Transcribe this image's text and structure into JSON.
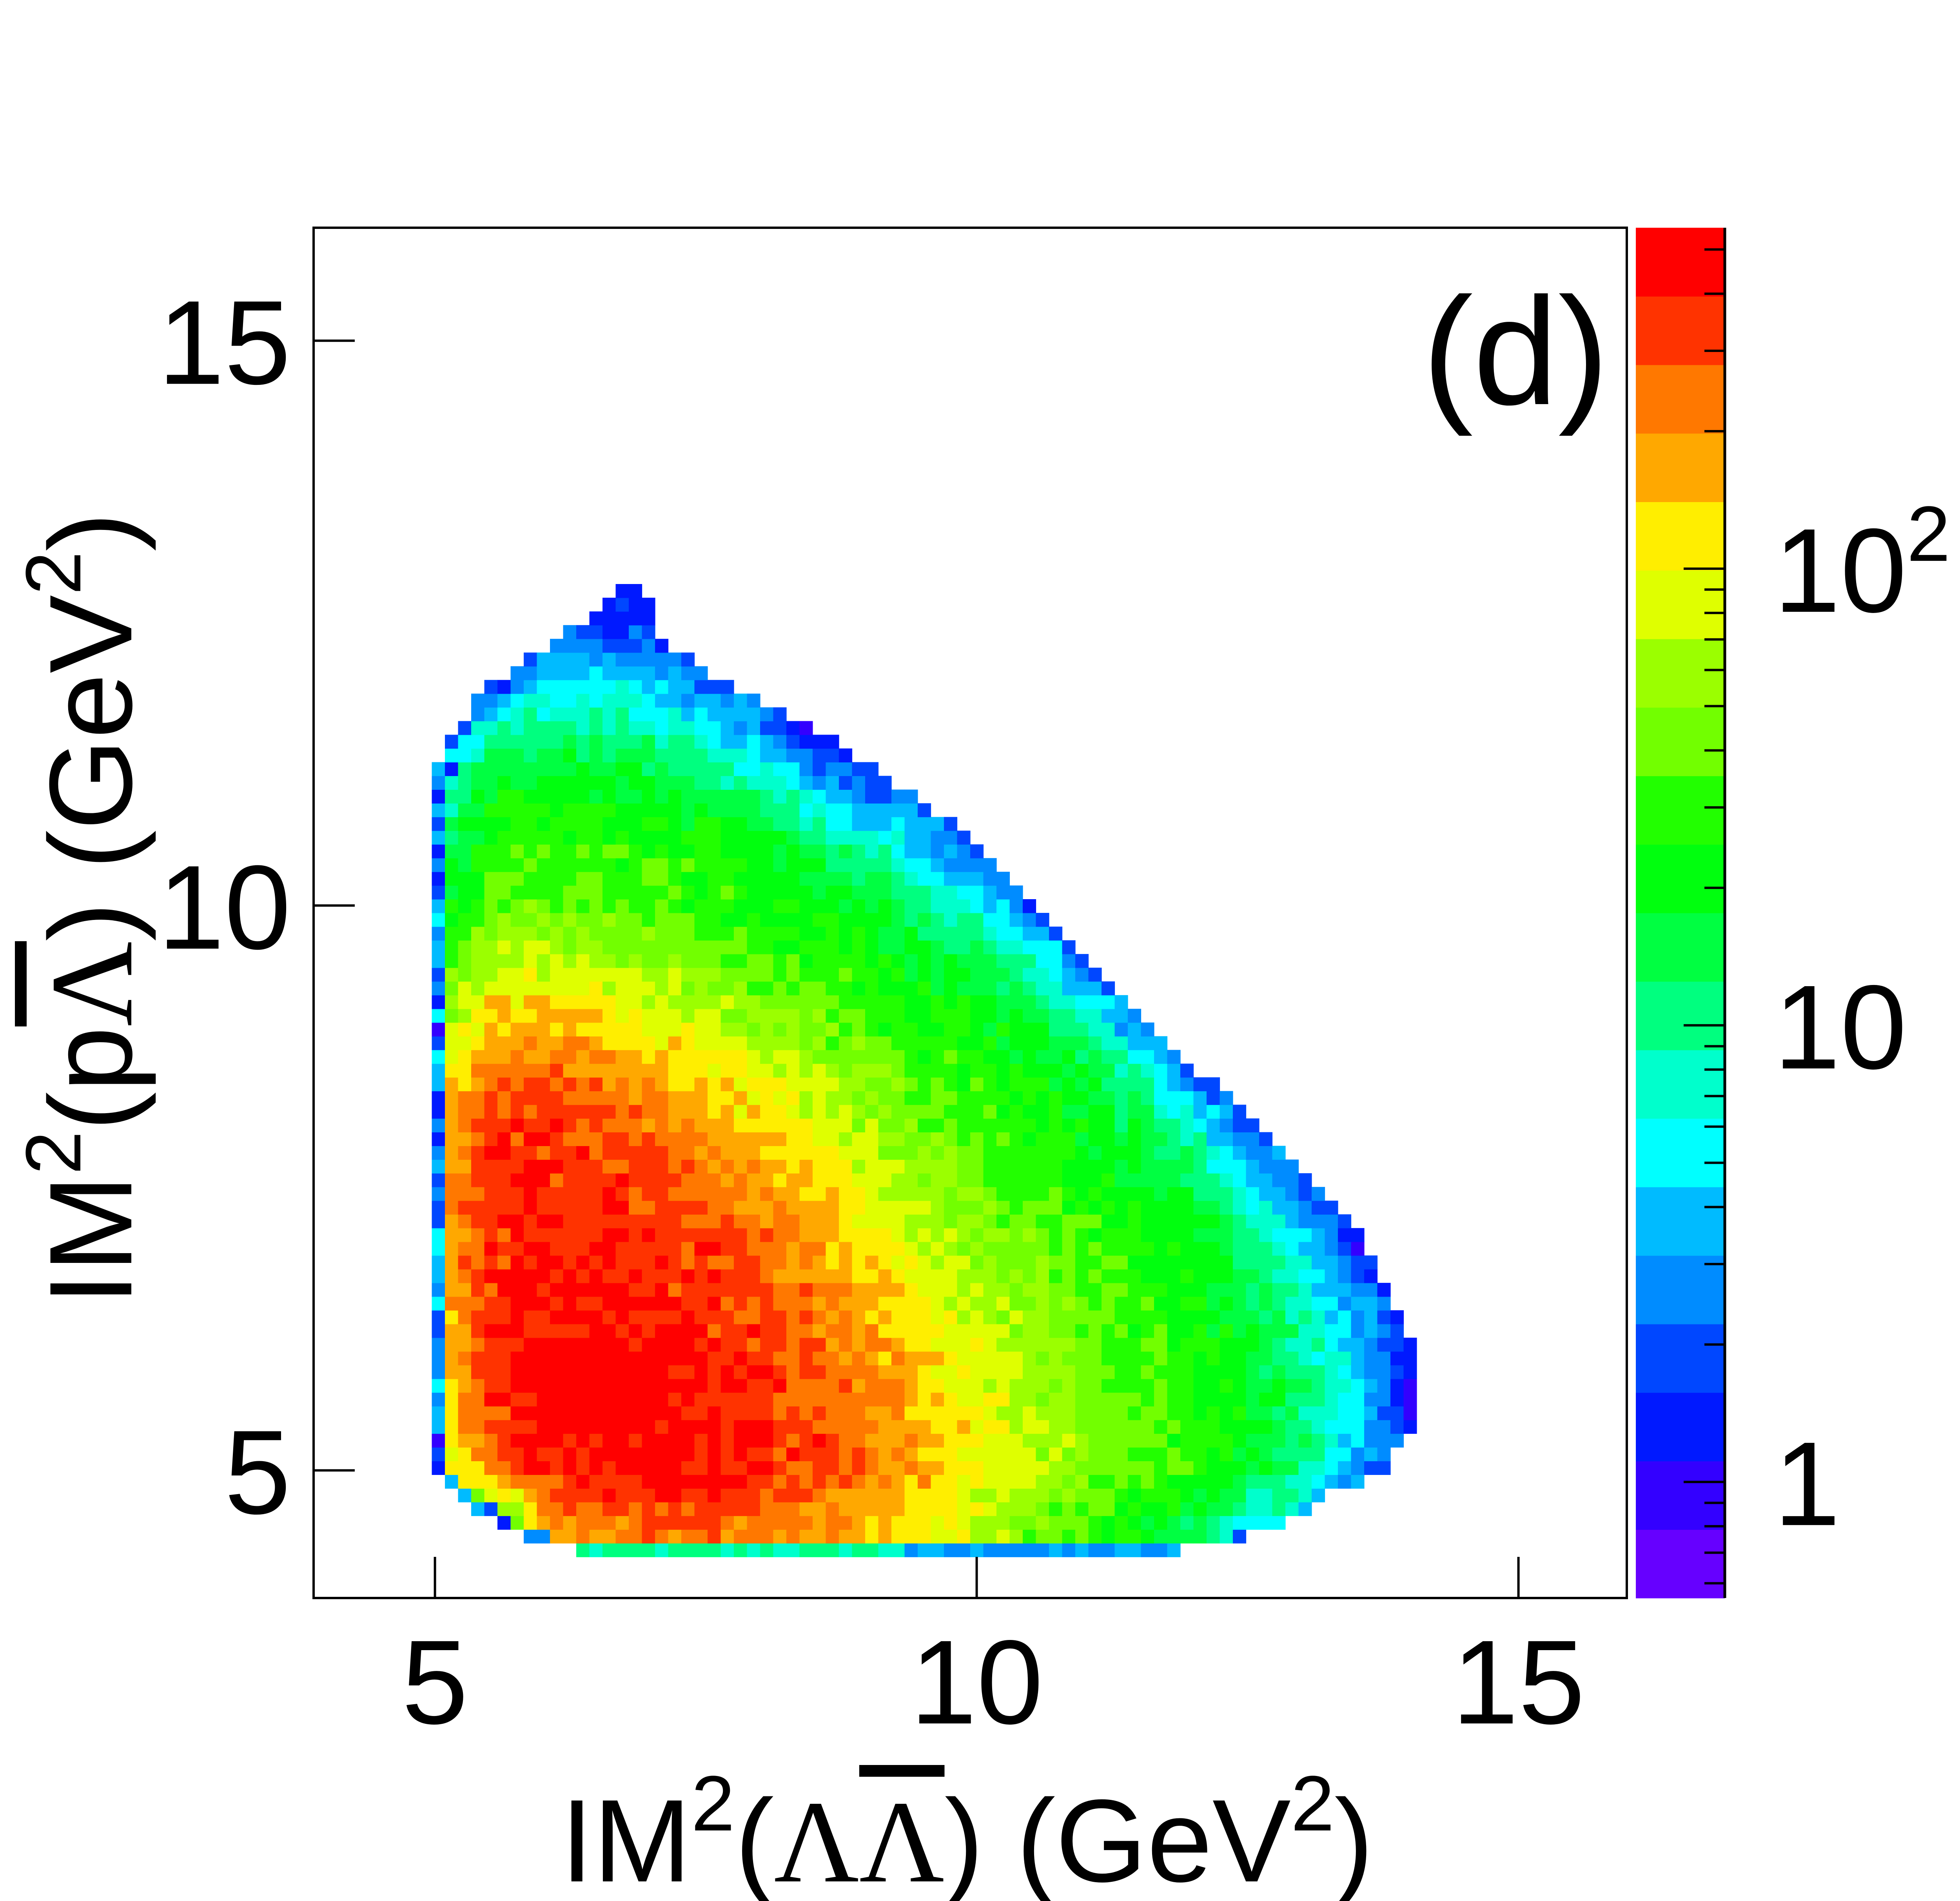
{
  "chart_data": {
    "type": "heatmap",
    "panel_label": "(d)",
    "xlabel": {
      "prefix": "IM",
      "sup": "2",
      "open": "(",
      "particle1": "Λ",
      "particle2": "Λ",
      "close": ")",
      "units_open": " (GeV",
      "units_sup": "2",
      "units_close": ")"
    },
    "ylabel": {
      "prefix": "IM",
      "sup": "2",
      "open": "(",
      "particle1": "p",
      "particle2": "Λ",
      "close": ")",
      "units_open": " (GeV",
      "units_sup": "2",
      "units_close": ")"
    },
    "xlim": [
      3.88,
      16.0
    ],
    "ylim": [
      3.87,
      16.0
    ],
    "nbins_x": 100,
    "nbins_y": 100,
    "x_ticks": [
      {
        "value": 5,
        "label": "5"
      },
      {
        "value": 10,
        "label": "10"
      },
      {
        "value": 15,
        "label": "15"
      }
    ],
    "y_ticks": [
      {
        "value": 5,
        "label": "5"
      },
      {
        "value": 10,
        "label": "10"
      },
      {
        "value": 15,
        "label": "15"
      }
    ],
    "z_scale": "log",
    "zlim": [
      0.557,
      558
    ],
    "z_ticks": [
      {
        "value": 1,
        "label": "1"
      },
      {
        "value": 10,
        "label": "10"
      },
      {
        "value": 100,
        "label": "10",
        "sup": "2"
      }
    ],
    "palette": [
      "#6600ff",
      "#3300ff",
      "#0019ff",
      "#0047ff",
      "#008cff",
      "#00bbff",
      "#00ffff",
      "#00ffcc",
      "#00ff7f",
      "#00ff41",
      "#00ff0e",
      "#22ff00",
      "#72ff00",
      "#9bff00",
      "#dfff00",
      "#ffee00",
      "#ffa800",
      "#ff7800",
      "#ff3300",
      "#ff0000"
    ],
    "grid": false,
    "colorbar": "right",
    "coarse_grid": {
      "x": [
        5.0,
        5.5,
        6.0,
        6.5,
        7.0,
        7.5,
        8.0,
        8.5,
        9.0,
        9.5,
        10.0,
        10.5,
        11.0,
        11.5,
        12.0,
        12.5,
        13.0,
        13.5,
        14.0
      ],
      "y": [
        4.5,
        5.0,
        5.5,
        6.0,
        6.5,
        7.0,
        7.5,
        8.0,
        8.5,
        9.0,
        9.5,
        10.0,
        10.5,
        11.0,
        11.5,
        12.0,
        12.5
      ],
      "counts": [
        [
          0,
          10,
          150,
          200,
          250,
          260,
          230,
          190,
          150,
          110,
          70,
          45,
          30,
          22,
          14,
          5,
          0,
          0,
          0
        ],
        [
          60,
          240,
          380,
          470,
          470,
          420,
          360,
          320,
          250,
          170,
          100,
          70,
          50,
          38,
          28,
          18,
          9,
          3,
          0
        ],
        [
          100,
          320,
          480,
          500,
          480,
          420,
          350,
          300,
          230,
          160,
          100,
          70,
          50,
          36,
          28,
          20,
          12,
          5,
          1.2
        ],
        [
          110,
          350,
          480,
          470,
          440,
          380,
          340,
          270,
          200,
          140,
          85,
          60,
          42,
          32,
          26,
          18,
          10,
          4,
          1.2
        ],
        [
          120,
          360,
          420,
          400,
          370,
          350,
          310,
          230,
          160,
          100,
          70,
          50,
          38,
          30,
          24,
          16,
          8,
          3,
          0
        ],
        [
          140,
          350,
          380,
          370,
          350,
          330,
          250,
          180,
          120,
          80,
          55,
          40,
          32,
          26,
          20,
          12,
          5,
          1.5,
          0
        ],
        [
          150,
          350,
          360,
          350,
          320,
          250,
          180,
          130,
          85,
          58,
          42,
          33,
          27,
          20,
          14,
          7,
          2,
          0,
          0
        ],
        [
          120,
          330,
          340,
          300,
          240,
          180,
          130,
          90,
          60,
          45,
          34,
          28,
          22,
          14,
          8,
          2,
          0,
          0,
          0
        ],
        [
          80,
          230,
          250,
          220,
          170,
          125,
          85,
          62,
          45,
          34,
          28,
          22,
          16,
          9,
          2,
          0,
          0,
          0,
          0
        ],
        [
          40,
          140,
          150,
          120,
          95,
          75,
          55,
          42,
          32,
          26,
          22,
          16,
          8,
          2,
          0,
          0,
          0,
          0,
          0
        ],
        [
          25,
          70,
          75,
          65,
          55,
          45,
          35,
          30,
          24,
          20,
          14,
          8,
          2,
          0,
          0,
          0,
          0,
          0,
          0
        ],
        [
          16,
          40,
          42,
          38,
          35,
          30,
          26,
          22,
          18,
          10,
          6,
          2,
          0,
          0,
          0,
          0,
          0,
          0,
          0
        ],
        [
          12,
          28,
          30,
          30,
          28,
          26,
          22,
          14,
          9,
          4,
          1.5,
          0,
          0,
          0,
          0,
          0,
          0,
          0,
          0
        ],
        [
          6,
          18,
          22,
          22,
          20,
          16,
          10,
          5,
          2,
          0,
          0,
          0,
          0,
          0,
          0,
          0,
          0,
          0,
          0
        ],
        [
          2,
          10,
          12,
          10,
          9,
          6,
          3,
          1,
          0,
          0,
          0,
          0,
          0,
          0,
          0,
          0,
          0,
          0,
          0
        ],
        [
          0,
          2,
          4,
          5,
          4,
          2,
          0,
          0,
          0,
          0,
          0,
          0,
          0,
          0,
          0,
          0,
          0,
          0,
          0
        ],
        [
          0,
          0,
          0,
          1.5,
          1.5,
          0,
          0,
          0,
          0,
          0,
          0,
          0,
          0,
          0,
          0,
          0,
          0,
          0,
          0
        ]
      ]
    },
    "boundary": [
      {
        "y": 4.33,
        "xmin": 6.25,
        "xmax": 11.9
      },
      {
        "y": 4.45,
        "xmin": 5.7,
        "xmax": 12.75
      },
      {
        "y": 4.8,
        "xmin": 5.15,
        "xmax": 13.3
      },
      {
        "y": 5.0,
        "xmin": 4.95,
        "xmax": 13.75
      },
      {
        "y": 5.5,
        "xmin": 4.95,
        "xmax": 14.1
      },
      {
        "y": 6.0,
        "xmin": 4.95,
        "xmax": 14.1
      },
      {
        "y": 6.5,
        "xmin": 4.95,
        "xmax": 13.85
      },
      {
        "y": 7.0,
        "xmin": 4.95,
        "xmax": 13.6
      },
      {
        "y": 7.5,
        "xmin": 4.95,
        "xmax": 13.15
      },
      {
        "y": 8.0,
        "xmin": 4.95,
        "xmax": 12.65
      },
      {
        "y": 8.5,
        "xmin": 4.95,
        "xmax": 12.1
      },
      {
        "y": 9.0,
        "xmin": 4.95,
        "xmax": 11.6
      },
      {
        "y": 9.5,
        "xmin": 4.95,
        "xmax": 11.1
      },
      {
        "y": 10.0,
        "xmin": 4.95,
        "xmax": 10.6
      },
      {
        "y": 10.5,
        "xmin": 4.95,
        "xmax": 10.1
      },
      {
        "y": 11.0,
        "xmin": 4.95,
        "xmax": 9.4
      },
      {
        "y": 11.5,
        "xmin": 5.1,
        "xmax": 8.6
      },
      {
        "y": 12.0,
        "xmin": 5.55,
        "xmax": 7.6
      },
      {
        "y": 12.4,
        "xmin": 6.2,
        "xmax": 7.05
      },
      {
        "y": 12.75,
        "xmin": 6.7,
        "xmax": 6.95
      }
    ],
    "bottom_strip": {
      "y": 4.33,
      "segments": [
        {
          "xmin": 6.25,
          "xmax": 9.3,
          "count": 9
        },
        {
          "xmin": 9.3,
          "xmax": 11.9,
          "count": 3
        }
      ]
    }
  }
}
